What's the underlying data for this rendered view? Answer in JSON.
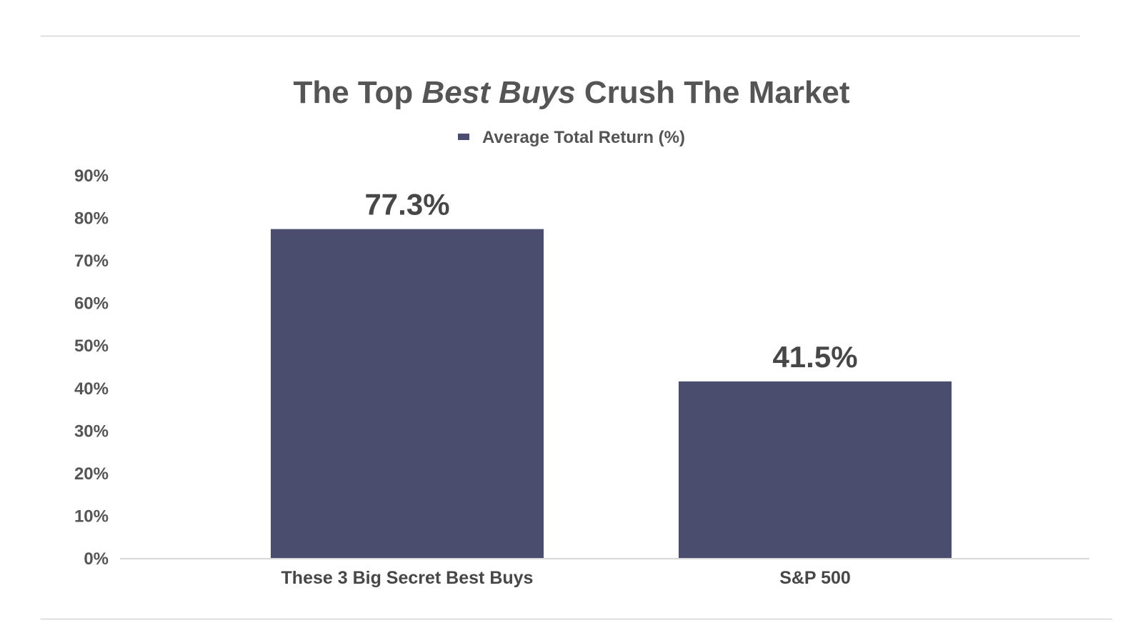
{
  "chart_data": {
    "type": "bar",
    "title_parts": {
      "before": "The Top ",
      "italic": "Best Buys",
      "after": " Crush The Market"
    },
    "categories": [
      "These 3 Big Secret Best Buys",
      "S&P 500"
    ],
    "series": [
      {
        "name": "Average Total Return (%)",
        "values": [
          77.3,
          41.5
        ],
        "data_labels": [
          "77.3%",
          "41.5%"
        ],
        "color": "#4a4d6e"
      }
    ],
    "ylim": [
      0,
      90
    ],
    "yticks": [
      0,
      10,
      20,
      30,
      40,
      50,
      60,
      70,
      80,
      90
    ],
    "ytick_labels": [
      "0%",
      "10%",
      "20%",
      "30%",
      "40%",
      "50%",
      "60%",
      "70%",
      "80%",
      "90%"
    ],
    "xlabel": "",
    "ylabel": "",
    "grid": false,
    "legend_position": "top-center",
    "axis_color": "#d9d9d9"
  }
}
